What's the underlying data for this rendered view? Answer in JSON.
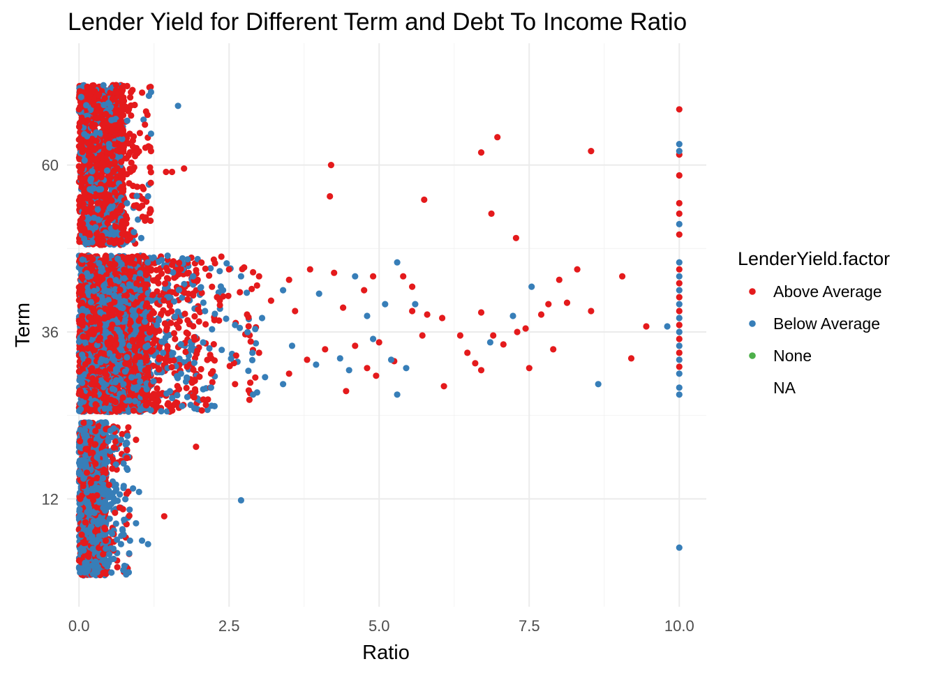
{
  "chart_data": {
    "type": "scatter",
    "title": "Lender Yield for Different Term and Debt To Income Ratio",
    "xlabel": "Ratio",
    "ylabel": "Term",
    "xlim": [
      -0.2,
      10.45
    ],
    "ylim": [
      -3.5,
      77.5
    ],
    "x_ticks": [
      0.0,
      2.5,
      5.0,
      7.5,
      10.0
    ],
    "x_tick_labels": [
      "0.0",
      "2.5",
      "5.0",
      "7.5",
      "10.0"
    ],
    "y_ticks": [
      12,
      36,
      60
    ],
    "y_tick_labels": [
      "12",
      "36",
      "60"
    ],
    "x_minor_ticks": [
      1.25,
      3.75,
      6.25,
      8.75
    ],
    "y_minor_ticks": [
      24,
      48
    ],
    "grid": true,
    "jitter": true,
    "legend": {
      "title": "LenderYield.factor",
      "position": "right",
      "entries": [
        {
          "label": "Above Average",
          "color": "#e41a1c"
        },
        {
          "label": "Below Average",
          "color": "#377eb8"
        },
        {
          "label": "None",
          "color": "#4daf4a"
        },
        {
          "label": "NA",
          "color": ""
        }
      ]
    },
    "series": [
      {
        "name": "Above Average",
        "color": "#e41a1c",
        "points": [
          [
            0.3,
            60
          ],
          [
            0.6,
            65
          ],
          [
            0.9,
            57
          ],
          [
            1.2,
            62
          ],
          [
            1.1,
            52
          ],
          [
            1.45,
            59
          ],
          [
            1.75,
            59.5
          ],
          [
            1.55,
            59
          ],
          [
            4.2,
            60
          ],
          [
            4.18,
            55.5
          ],
          [
            5.75,
            55
          ],
          [
            6.7,
            61.8
          ],
          [
            6.97,
            64
          ],
          [
            7.28,
            49.5
          ],
          [
            6.87,
            53
          ],
          [
            8.53,
            62
          ],
          [
            10,
            68
          ],
          [
            10,
            61.5
          ],
          [
            10,
            58.5
          ],
          [
            10,
            54.5
          ],
          [
            10,
            53
          ],
          [
            10,
            50
          ],
          [
            2.5,
            45
          ],
          [
            3.0,
            44
          ],
          [
            3.5,
            43.5
          ],
          [
            3.85,
            45
          ],
          [
            4.25,
            44.5
          ],
          [
            4.75,
            42
          ],
          [
            4.9,
            44
          ],
          [
            5.4,
            44
          ],
          [
            5.55,
            42.5
          ],
          [
            8.3,
            45
          ],
          [
            9.05,
            44
          ],
          [
            8.0,
            43.5
          ],
          [
            7.82,
            40
          ],
          [
            8.13,
            40.2
          ],
          [
            8.53,
            39
          ],
          [
            6.7,
            38.8
          ],
          [
            7.7,
            38.5
          ],
          [
            5.55,
            39
          ],
          [
            5.8,
            38.5
          ],
          [
            6.05,
            38
          ],
          [
            7.3,
            36
          ],
          [
            7.44,
            36.5
          ],
          [
            9.45,
            36.8
          ],
          [
            6.47,
            33
          ],
          [
            6.9,
            35.5
          ],
          [
            7.07,
            34.2
          ],
          [
            7.9,
            33.5
          ],
          [
            9.2,
            32.2
          ],
          [
            7.5,
            30.8
          ],
          [
            6.6,
            31.5
          ],
          [
            6.7,
            30.5
          ],
          [
            6.08,
            28.2
          ],
          [
            5.72,
            35.5
          ],
          [
            6.35,
            35.5
          ],
          [
            5.25,
            31.8
          ],
          [
            5.0,
            34.5
          ],
          [
            4.6,
            34
          ],
          [
            4.1,
            33.5
          ],
          [
            3.0,
            33
          ],
          [
            3.5,
            30
          ],
          [
            3.8,
            32
          ],
          [
            4.95,
            29.7
          ],
          [
            4.8,
            30.8
          ],
          [
            4.45,
            27.5
          ],
          [
            2.2,
            30
          ],
          [
            2.6,
            28.5
          ],
          [
            1.8,
            31
          ],
          [
            1.6,
            35
          ],
          [
            2.0,
            37.5
          ],
          [
            2.3,
            41
          ],
          [
            2.8,
            38.5
          ],
          [
            3.2,
            40.5
          ],
          [
            3.6,
            39
          ],
          [
            4.4,
            39.5
          ],
          [
            10,
            45
          ],
          [
            10,
            43
          ],
          [
            10,
            41
          ],
          [
            10,
            39
          ],
          [
            10,
            37
          ],
          [
            10,
            35
          ],
          [
            10,
            33
          ],
          [
            10,
            31
          ],
          [
            1.95,
            19.5
          ],
          [
            1.42,
            9.5
          ],
          [
            0.95,
            20.5
          ],
          [
            0.8,
            19
          ],
          [
            0.5,
            14
          ],
          [
            0.3,
            12.5
          ],
          [
            0.6,
            10
          ]
        ]
      },
      {
        "name": "Below Average",
        "color": "#377eb8",
        "points": [
          [
            1.65,
            68.5
          ],
          [
            0.2,
            58
          ],
          [
            0.5,
            63
          ],
          [
            0.8,
            54.5
          ],
          [
            1.15,
            55.5
          ],
          [
            1.2,
            64.5
          ],
          [
            10,
            63
          ],
          [
            10,
            62
          ],
          [
            10,
            51.5
          ],
          [
            5.3,
            46
          ],
          [
            5.1,
            40
          ],
          [
            5.6,
            40
          ],
          [
            7.54,
            42.5
          ],
          [
            7.23,
            38.3
          ],
          [
            9.8,
            36.8
          ],
          [
            6.85,
            34.5
          ],
          [
            5.45,
            30.8
          ],
          [
            8.65,
            28.5
          ],
          [
            5.2,
            32
          ],
          [
            4.5,
            30.5
          ],
          [
            3.95,
            31.3
          ],
          [
            3.1,
            29.5
          ],
          [
            2.9,
            27
          ],
          [
            5.3,
            27
          ],
          [
            4.35,
            32.2
          ],
          [
            3.55,
            34
          ],
          [
            2.6,
            37
          ],
          [
            3.05,
            38
          ],
          [
            2.1,
            39
          ],
          [
            2.4,
            42
          ],
          [
            2.7,
            44
          ],
          [
            3.4,
            42
          ],
          [
            4.0,
            41.5
          ],
          [
            4.6,
            44
          ],
          [
            1.9,
            44
          ],
          [
            1.5,
            41
          ],
          [
            1.3,
            37
          ],
          [
            1.4,
            33
          ],
          [
            1.7,
            30
          ],
          [
            2.2,
            28
          ],
          [
            3.4,
            28.5
          ],
          [
            4.8,
            38.3
          ],
          [
            4.9,
            35
          ],
          [
            10,
            46
          ],
          [
            10,
            44
          ],
          [
            10,
            42
          ],
          [
            10,
            40
          ],
          [
            10,
            38
          ],
          [
            10,
            36
          ],
          [
            10,
            34
          ],
          [
            10,
            32
          ],
          [
            10,
            30
          ],
          [
            10,
            28
          ],
          [
            10,
            27
          ],
          [
            10,
            5
          ],
          [
            2.7,
            11.8
          ],
          [
            1.15,
            5.5
          ],
          [
            1.05,
            6
          ],
          [
            0.95,
            8.5
          ],
          [
            0.75,
            9
          ],
          [
            0.7,
            5.5
          ],
          [
            0.85,
            6
          ],
          [
            0.9,
            13.5
          ],
          [
            1.0,
            13
          ],
          [
            0.8,
            20
          ],
          [
            0.7,
            20.5
          ],
          [
            0.3,
            18
          ],
          [
            0.2,
            8
          ],
          [
            0.4,
            15
          ],
          [
            0.55,
            7
          ]
        ]
      }
    ]
  }
}
